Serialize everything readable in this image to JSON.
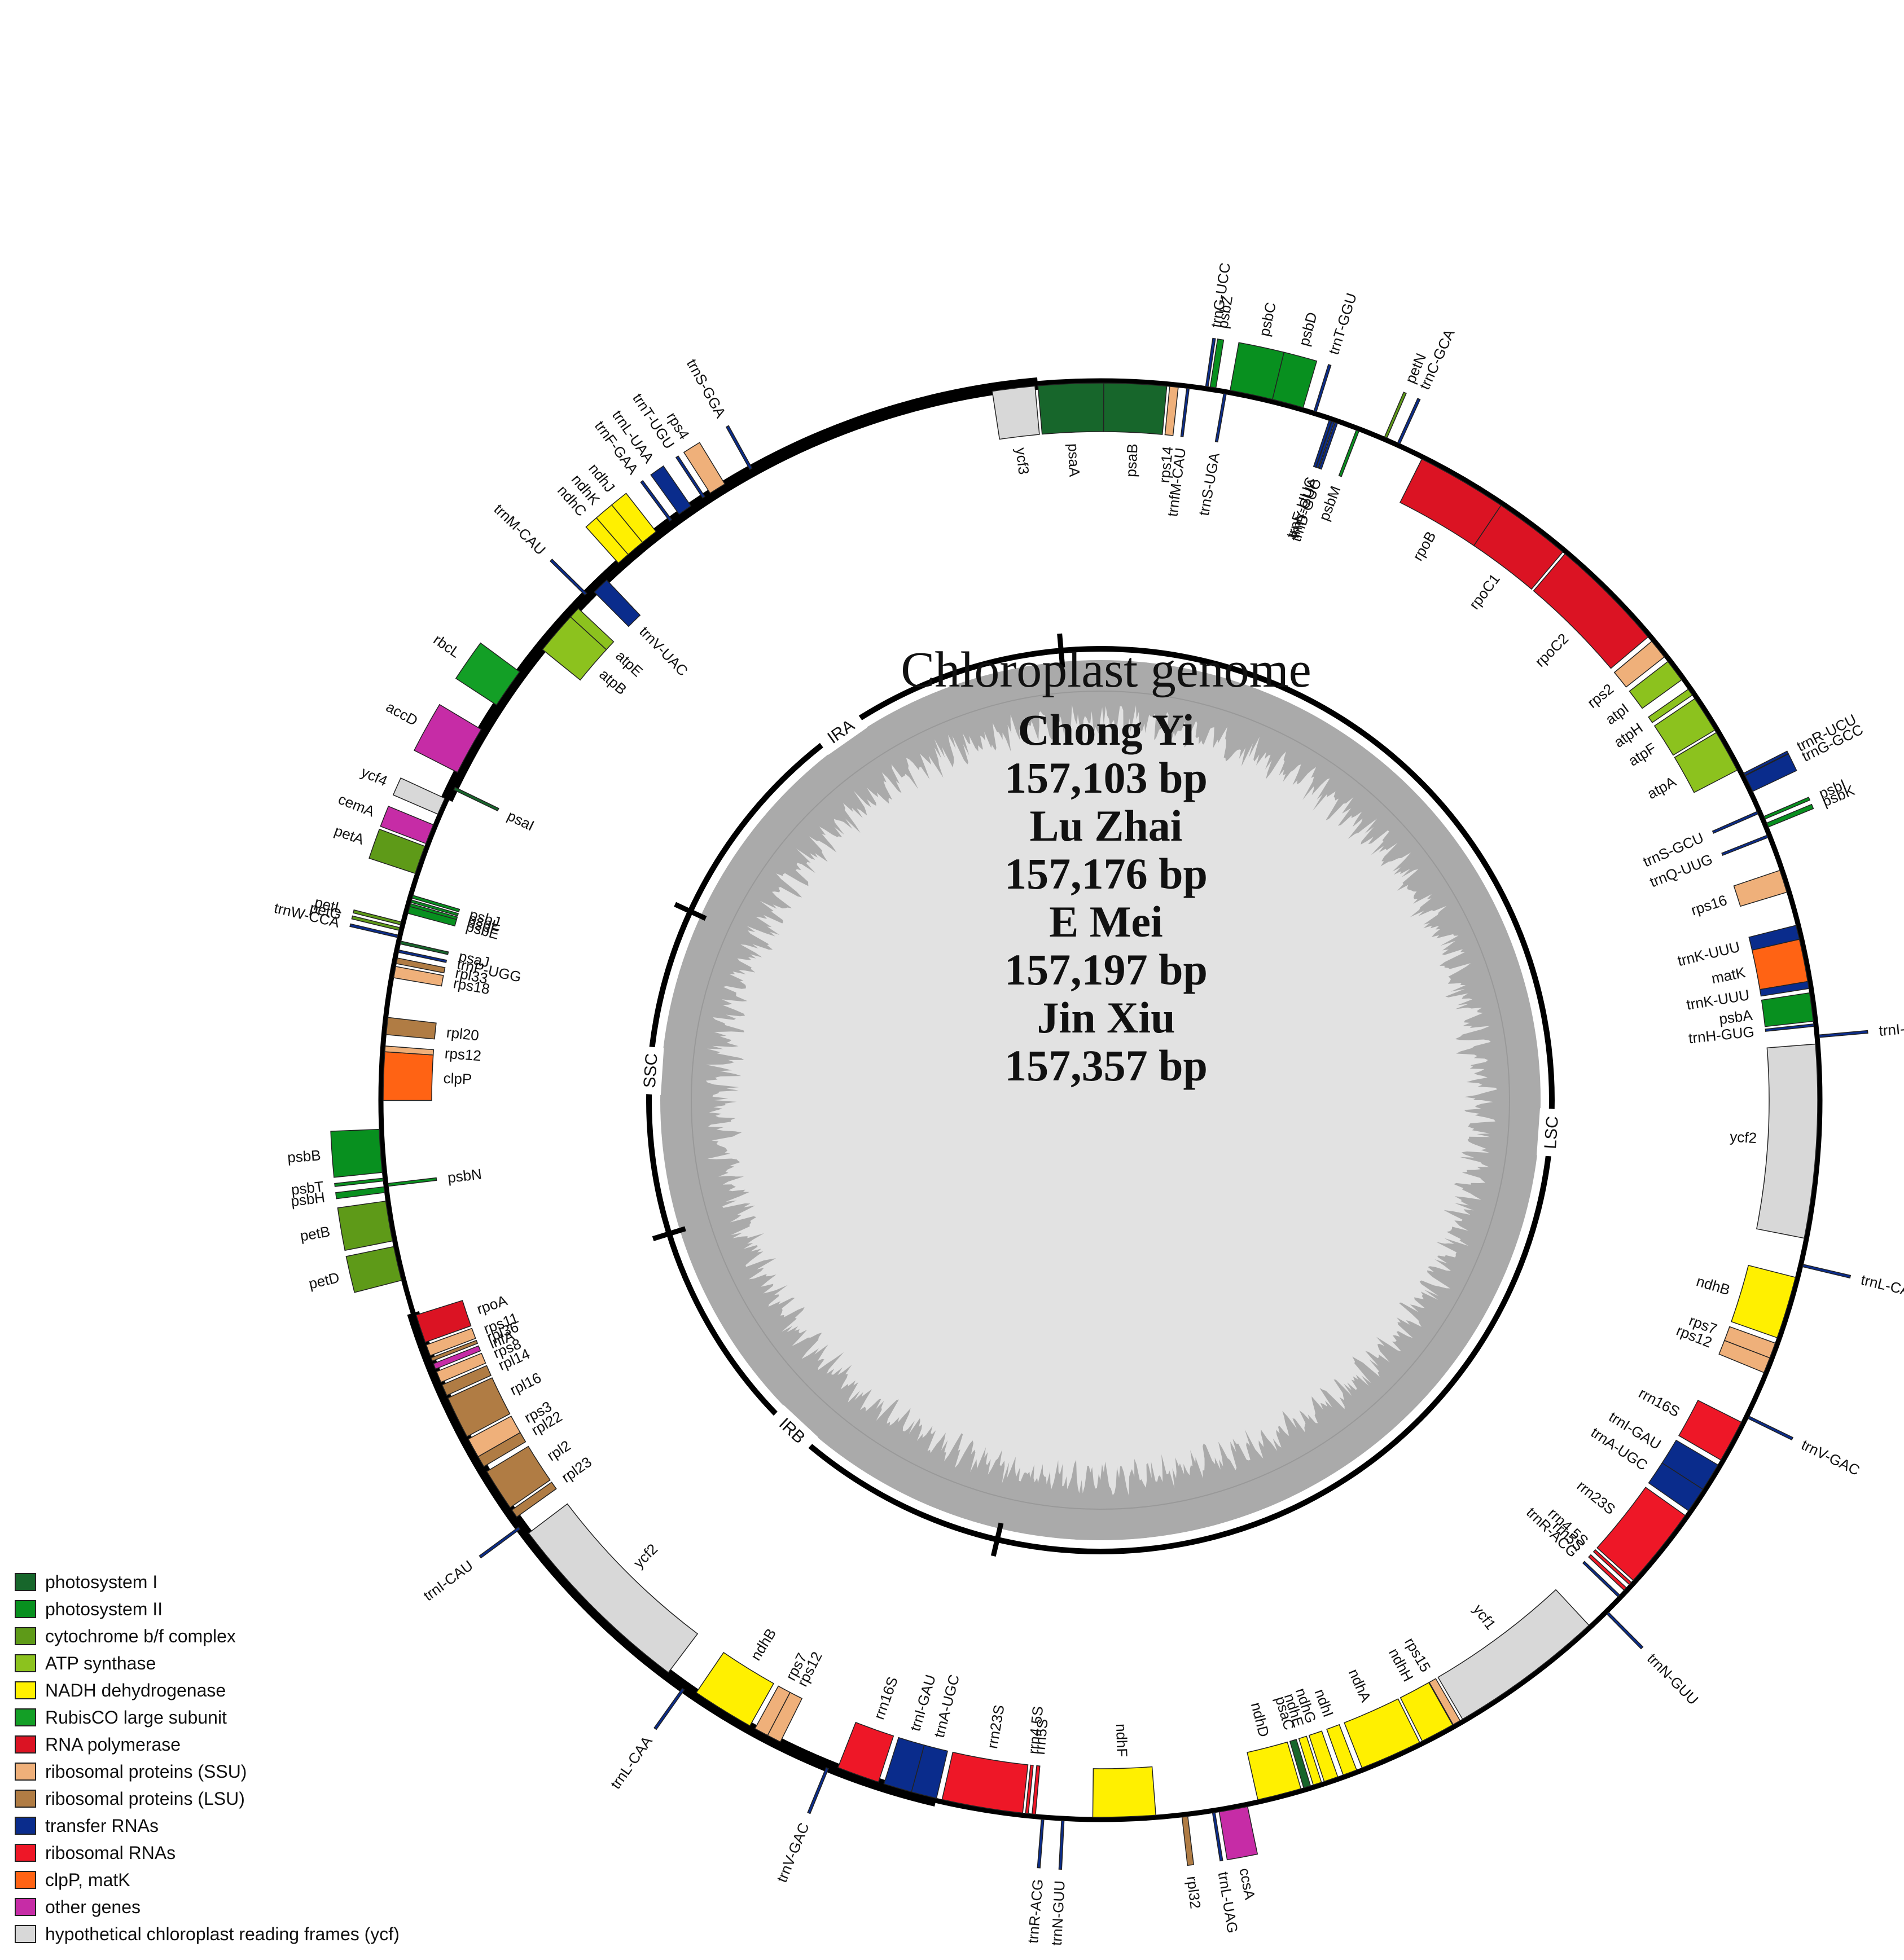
{
  "center": {
    "title": "Chloroplast genome",
    "lines": [
      "Chong Yi",
      "157,103 bp",
      "Lu Zhai",
      "157,176 bp",
      "E Mei",
      "157,197 bp",
      "Jin Xiu",
      "157,357 bp"
    ]
  },
  "regions": [
    {
      "label": "LSC",
      "start": 0,
      "end": 86500
    },
    {
      "label": "IRB",
      "start": 86500,
      "end": 112500
    },
    {
      "label": "SSC",
      "start": 112500,
      "end": 130800
    },
    {
      "label": "IRA",
      "start": 130800,
      "end": 157103
    }
  ],
  "colors": {
    "photosystem I": "#17662b",
    "photosystem II": "#08901f",
    "cytochrome b/f complex": "#5e9a18",
    "ATP synthase": "#8cc21e",
    "NADH dehydrogenase": "#fff000",
    "RubisCO large subunit": "#139f26",
    "RNA polymerase": "#db1323",
    "ribosomal proteins (SSU)": "#efb07a",
    "ribosomal proteins (LSU)": "#b07c44",
    "transfer RNAs": "#0a2c8c",
    "ribosomal RNAs": "#ee1727",
    "clpP, matK": "#ff6314",
    "other genes": "#c62ca6",
    "hypothetical chloroplast reading frames (ycf)": "#d8d8d8"
  },
  "legend": [
    {
      "label": "photosystem I",
      "color": "#17662b"
    },
    {
      "label": "photosystem II",
      "color": "#08901f"
    },
    {
      "label": "cytochrome b/f complex",
      "color": "#5e9a18"
    },
    {
      "label": "ATP synthase",
      "color": "#8cc21e"
    },
    {
      "label": "NADH dehydrogenase",
      "color": "#fff000"
    },
    {
      "label": "RubisCO large subunit",
      "color": "#139f26"
    },
    {
      "label": "RNA polymerase",
      "color": "#db1323"
    },
    {
      "label": "ribosomal proteins (SSU)",
      "color": "#efb07a"
    },
    {
      "label": "ribosomal proteins (LSU)",
      "color": "#b07c44"
    },
    {
      "label": "transfer RNAs",
      "color": "#0a2c8c"
    },
    {
      "label": "ribosomal RNAs",
      "color": "#ee1727"
    },
    {
      "label": "clpP, matK",
      "color": "#ff6314"
    },
    {
      "label": "other genes",
      "color": "#c62ca6"
    },
    {
      "label": "hypothetical chloroplast reading frames (ycf)",
      "color": "#d8d8d8"
    }
  ],
  "genes": [
    {
      "name": "ycf3",
      "cat": "hypothetical chloroplast reading frames (ycf)",
      "start": 155500,
      "end": 157000,
      "strand": "+"
    },
    {
      "name": "psaA",
      "cat": "photosystem I",
      "start": 0,
      "end": 2300,
      "strand": "+"
    },
    {
      "name": "psaB",
      "cat": "photosystem I",
      "start": 2300,
      "end": 4500,
      "strand": "+"
    },
    {
      "name": "rps14",
      "cat": "ribosomal proteins (SSU)",
      "start": 4600,
      "end": 4900,
      "strand": "+"
    },
    {
      "name": "trnfM-CAU",
      "cat": "transfer RNAs",
      "start": 5200,
      "end": 5280,
      "strand": "+"
    },
    {
      "name": "trnS-UGA",
      "cat": "transfer RNAs",
      "start": 6500,
      "end": 6590,
      "strand": "+"
    },
    {
      "name": "trnG-UCC",
      "cat": "transfer RNAs",
      "start": 5850,
      "end": 5920,
      "strand": "-"
    },
    {
      "name": "psbZ",
      "cat": "photosystem II",
      "start": 6000,
      "end": 6200,
      "strand": "-"
    },
    {
      "name": "psbC",
      "cat": "photosystem II",
      "start": 6700,
      "end": 8200,
      "strand": "-"
    },
    {
      "name": "psbD",
      "cat": "photosystem II",
      "start": 8200,
      "end": 9300,
      "strand": "-"
    },
    {
      "name": "trnT-GGU",
      "cat": "transfer RNAs",
      "start": 9700,
      "end": 9775,
      "strand": "-"
    },
    {
      "name": "trnE-UUC",
      "cat": "transfer RNAs",
      "start": 10300,
      "end": 10375,
      "strand": "+"
    },
    {
      "name": "trnY-GUA",
      "cat": "transfer RNAs",
      "start": 10400,
      "end": 10480,
      "strand": "+"
    },
    {
      "name": "trnD-GUC",
      "cat": "transfer RNAs",
      "start": 10520,
      "end": 10600,
      "strand": "+"
    },
    {
      "name": "psbM",
      "cat": "photosystem II",
      "start": 11300,
      "end": 11400,
      "strand": "+"
    },
    {
      "name": "petN",
      "cat": "cytochrome b/f complex",
      "start": 12300,
      "end": 12390,
      "strand": "-"
    },
    {
      "name": "trnC-GCA",
      "cat": "transfer RNAs",
      "start": 12800,
      "end": 12880,
      "strand": "-"
    },
    {
      "name": "rpoB",
      "cat": "RNA polymerase",
      "start": 13800,
      "end": 17000,
      "strand": "+"
    },
    {
      "name": "rpoC1",
      "cat": "RNA polymerase",
      "start": 17000,
      "end": 19700,
      "strand": "+"
    },
    {
      "name": "rpoC2",
      "cat": "RNA polymerase",
      "start": 19800,
      "end": 23900,
      "strand": "+"
    },
    {
      "name": "rps2",
      "cat": "ribosomal proteins (SSU)",
      "start": 24100,
      "end": 24800,
      "strand": "+"
    },
    {
      "name": "atpI",
      "cat": "ATP synthase",
      "start": 25000,
      "end": 25800,
      "strand": "+"
    },
    {
      "name": "atpH",
      "cat": "ATP synthase",
      "start": 26200,
      "end": 26450,
      "strand": "+"
    },
    {
      "name": "atpF",
      "cat": "ATP synthase",
      "start": 26600,
      "end": 27900,
      "strand": "+"
    },
    {
      "name": "atpA",
      "cat": "ATP synthase",
      "start": 28000,
      "end": 29500,
      "strand": "+"
    },
    {
      "name": "trnR-UCU",
      "cat": "transfer RNAs",
      "start": 29700,
      "end": 29780,
      "strand": "-"
    },
    {
      "name": "trnG-GCC",
      "cat": "transfer RNAs",
      "start": 29800,
      "end": 30400,
      "strand": "-"
    },
    {
      "name": "trnS-GCU",
      "cat": "transfer RNAs",
      "start": 31100,
      "end": 31190,
      "strand": "+"
    },
    {
      "name": "psbI",
      "cat": "photosystem II",
      "start": 31350,
      "end": 31450,
      "strand": "-"
    },
    {
      "name": "psbK",
      "cat": "photosystem II",
      "start": 31600,
      "end": 31750,
      "strand": "-"
    },
    {
      "name": "trnQ-UUG",
      "cat": "transfer RNAs",
      "start": 32000,
      "end": 32080,
      "strand": "+"
    },
    {
      "name": "rps16",
      "cat": "ribosomal proteins (SSU)",
      "start": 33300,
      "end": 34100,
      "strand": "+"
    },
    {
      "name": "trnK-UUU",
      "cat": "transfer RNAs",
      "start": 35300,
      "end": 35800,
      "strand": "+"
    },
    {
      "name": "matK",
      "cat": "clpP, matK",
      "start": 35800,
      "end": 37300,
      "strand": "+"
    },
    {
      "name": "trnK-UUU",
      "cat": "transfer RNAs",
      "start": 37300,
      "end": 37550,
      "strand": "+"
    },
    {
      "name": "psbA",
      "cat": "photosystem II",
      "start": 37700,
      "end": 38700,
      "strand": "+"
    },
    {
      "name": "trnH-GUG",
      "cat": "transfer RNAs",
      "start": 38800,
      "end": 38875,
      "strand": "+"
    },
    {
      "name": "trnI-CAU",
      "cat": "transfer RNAs",
      "start": 39200,
      "end": 39275,
      "strand": "-"
    },
    {
      "name": "ycf2",
      "cat": "hypothetical chloroplast reading frames (ycf)",
      "start": 39500,
      "end": 46300,
      "strand": "+"
    },
    {
      "name": "trnL-CAA",
      "cat": "transfer RNAs",
      "start": 47200,
      "end": 47280,
      "strand": "-"
    },
    {
      "name": "ndhB",
      "cat": "NADH dehydrogenase",
      "start": 47700,
      "end": 49900,
      "strand": "+"
    },
    {
      "name": "rps7",
      "cat": "ribosomal proteins (SSU)",
      "start": 50100,
      "end": 50650,
      "strand": "+"
    },
    {
      "name": "rps12",
      "cat": "ribosomal proteins (SSU)",
      "start": 50650,
      "end": 51200,
      "strand": "+"
    },
    {
      "name": "trnV-GAC",
      "cat": "transfer RNAs",
      "start": 52800,
      "end": 52875,
      "strand": "-"
    },
    {
      "name": "rrn16S",
      "cat": "ribosomal RNAs",
      "start": 53100,
      "end": 54600,
      "strand": "+"
    },
    {
      "name": "trnI-GAU",
      "cat": "transfer RNAs",
      "start": 54800,
      "end": 55800,
      "strand": "+"
    },
    {
      "name": "trnA-UGC",
      "cat": "transfer RNAs",
      "start": 55800,
      "end": 56700,
      "strand": "+"
    },
    {
      "name": "rrn23S",
      "cat": "ribosomal RNAs",
      "start": 56900,
      "end": 59800,
      "strand": "+"
    },
    {
      "name": "rrn4.5S",
      "cat": "ribosomal RNAs",
      "start": 59900,
      "end": 60000,
      "strand": "+"
    },
    {
      "name": "rrn5S",
      "cat": "ribosomal RNAs",
      "start": 60150,
      "end": 60270,
      "strand": "+"
    },
    {
      "name": "trnR-ACG",
      "cat": "transfer RNAs",
      "start": 60500,
      "end": 60575,
      "strand": "+"
    },
    {
      "name": "trnN-GUU",
      "cat": "transfer RNAs",
      "start": 61200,
      "end": 61275,
      "strand": "-"
    },
    {
      "name": "ycf1",
      "cat": "hypothetical chloroplast reading frames (ycf)",
      "start": 62000,
      "end": 67500,
      "strand": "+"
    },
    {
      "name": "rps15",
      "cat": "ribosomal proteins (SSU)",
      "start": 67600,
      "end": 67880,
      "strand": "+"
    },
    {
      "name": "ndhH",
      "cat": "NADH dehydrogenase",
      "start": 67900,
      "end": 69100,
      "strand": "+"
    },
    {
      "name": "ndhA",
      "cat": "NADH dehydrogenase",
      "start": 69200,
      "end": 71400,
      "strand": "+"
    },
    {
      "name": "ndhI",
      "cat": "NADH dehydrogenase",
      "start": 71600,
      "end": 72100,
      "strand": "+"
    },
    {
      "name": "ndhG",
      "cat": "NADH dehydrogenase",
      "start": 72300,
      "end": 72800,
      "strand": "+"
    },
    {
      "name": "ndhE",
      "cat": "NADH dehydrogenase",
      "start": 72900,
      "end": 73200,
      "strand": "+"
    },
    {
      "name": "psaC",
      "cat": "photosystem I",
      "start": 73300,
      "end": 73550,
      "strand": "+"
    },
    {
      "name": "ndhD",
      "cat": "NADH dehydrogenase",
      "start": 73650,
      "end": 75200,
      "strand": "+"
    },
    {
      "name": "ccsA",
      "cat": "other genes",
      "start": 75600,
      "end": 76600,
      "strand": "-"
    },
    {
      "name": "trnL-UAG",
      "cat": "transfer RNAs",
      "start": 76750,
      "end": 76830,
      "strand": "-"
    },
    {
      "name": "rpl32",
      "cat": "ribosomal proteins (LSU)",
      "start": 77700,
      "end": 77900,
      "strand": "-"
    },
    {
      "name": "ndhF",
      "cat": "NADH dehydrogenase",
      "start": 78800,
      "end": 81000,
      "strand": "+"
    },
    {
      "name": "trnN-GUU",
      "cat": "transfer RNAs",
      "start": 82000,
      "end": 82075,
      "strand": "-"
    },
    {
      "name": "trnR-ACG",
      "cat": "transfer RNAs",
      "start": 82700,
      "end": 82775,
      "strand": "-"
    },
    {
      "name": "rrn5S",
      "cat": "ribosomal RNAs",
      "start": 83000,
      "end": 83120,
      "strand": "+"
    },
    {
      "name": "rrn4.5S",
      "cat": "ribosomal RNAs",
      "start": 83250,
      "end": 83350,
      "strand": "+"
    },
    {
      "name": "rrn23S",
      "cat": "ribosomal RNAs",
      "start": 83450,
      "end": 86300,
      "strand": "+"
    },
    {
      "name": "trnA-UGC",
      "cat": "transfer RNAs",
      "start": 86500,
      "end": 87400,
      "strand": "+"
    },
    {
      "name": "trnI-GAU",
      "cat": "transfer RNAs",
      "start": 87400,
      "end": 88400,
      "strand": "+"
    },
    {
      "name": "rrn16S",
      "cat": "ribosomal RNAs",
      "start": 88600,
      "end": 90100,
      "strand": "+"
    },
    {
      "name": "trnV-GAC",
      "cat": "transfer RNAs",
      "start": 90400,
      "end": 90475,
      "strand": "-"
    },
    {
      "name": "rps12",
      "cat": "ribosomal proteins (SSU)",
      "start": 92300,
      "end": 92800,
      "strand": "+"
    },
    {
      "name": "rps7",
      "cat": "ribosomal proteins (SSU)",
      "start": 92800,
      "end": 93300,
      "strand": "+"
    },
    {
      "name": "ndhB",
      "cat": "NADH dehydrogenase",
      "start": 93500,
      "end": 95700,
      "strand": "+"
    },
    {
      "name": "trnL-CAA",
      "cat": "transfer RNAs",
      "start": 96100,
      "end": 96180,
      "strand": "-"
    },
    {
      "name": "ycf2",
      "cat": "hypothetical chloroplast reading frames (ycf)",
      "start": 96900,
      "end": 103800,
      "strand": "+"
    },
    {
      "name": "trnI-CAU",
      "cat": "transfer RNAs",
      "start": 104100,
      "end": 104175,
      "strand": "-"
    },
    {
      "name": "rpl23",
      "cat": "ribosomal proteins (LSU)",
      "start": 104500,
      "end": 104800,
      "strand": "+"
    },
    {
      "name": "rpl2",
      "cat": "ribosomal proteins (LSU)",
      "start": 104900,
      "end": 106400,
      "strand": "+"
    },
    {
      "name": "rpl22",
      "cat": "ribosomal proteins (LSU)",
      "start": 106600,
      "end": 107000,
      "strand": "+"
    },
    {
      "name": "rps3",
      "cat": "ribosomal proteins (SSU)",
      "start": 107000,
      "end": 107700,
      "strand": "+"
    },
    {
      "name": "rpl16",
      "cat": "ribosomal proteins (LSU)",
      "start": 107800,
      "end": 109300,
      "strand": "+"
    },
    {
      "name": "rpl14",
      "cat": "ribosomal proteins (LSU)",
      "start": 109400,
      "end": 109800,
      "strand": "+"
    },
    {
      "name": "rps8",
      "cat": "ribosomal proteins (SSU)",
      "start": 109900,
      "end": 110300,
      "strand": "+"
    },
    {
      "name": "infA",
      "cat": "other genes",
      "start": 110400,
      "end": 110600,
      "strand": "+"
    },
    {
      "name": "rpl36",
      "cat": "ribosomal proteins (LSU)",
      "start": 110700,
      "end": 110820,
      "strand": "+"
    },
    {
      "name": "rps11",
      "cat": "ribosomal proteins (SSU)",
      "start": 110900,
      "end": 111300,
      "strand": "+"
    },
    {
      "name": "rpoA",
      "cat": "RNA polymerase",
      "start": 111400,
      "end": 112400,
      "strand": "+"
    },
    {
      "name": "petD",
      "cat": "cytochrome b/f complex",
      "start": 113700,
      "end": 114900,
      "strand": "-"
    },
    {
      "name": "petB",
      "cat": "cytochrome b/f complex",
      "start": 115100,
      "end": 116500,
      "strand": "-"
    },
    {
      "name": "psbH",
      "cat": "photosystem II",
      "start": 116800,
      "end": 117000,
      "strand": "-"
    },
    {
      "name": "psbN",
      "cat": "photosystem II",
      "start": 117000,
      "end": 117100,
      "strand": "+"
    },
    {
      "name": "psbT",
      "cat": "photosystem II",
      "start": 117200,
      "end": 117300,
      "strand": "-"
    },
    {
      "name": "psbB",
      "cat": "photosystem II",
      "start": 117500,
      "end": 119000,
      "strand": "-"
    },
    {
      "name": "clpP",
      "cat": "clpP, matK",
      "start": 120000,
      "end": 121700,
      "strand": "+"
    },
    {
      "name": "rps12",
      "cat": "ribosomal proteins (SSU)",
      "start": 121700,
      "end": 121900,
      "strand": "+"
    },
    {
      "name": "rpl20",
      "cat": "ribosomal proteins (LSU)",
      "start": 122300,
      "end": 122900,
      "strand": "+"
    },
    {
      "name": "rps18",
      "cat": "ribosomal proteins (SSU)",
      "start": 124300,
      "end": 124700,
      "strand": "+"
    },
    {
      "name": "rpl33",
      "cat": "ribosomal proteins (LSU)",
      "start": 124800,
      "end": 125000,
      "strand": "+"
    },
    {
      "name": "trnP-UGG",
      "cat": "transfer RNAs",
      "start": 125200,
      "end": 125280,
      "strand": "+"
    },
    {
      "name": "psaJ",
      "cat": "photosystem I",
      "start": 125500,
      "end": 125600,
      "strand": "+"
    },
    {
      "name": "trnW-CCA",
      "cat": "transfer RNAs",
      "start": 125700,
      "end": 125780,
      "strand": "-"
    },
    {
      "name": "petG",
      "cat": "cytochrome b/f complex",
      "start": 125950,
      "end": 126050,
      "strand": "-"
    },
    {
      "name": "petL",
      "cat": "cytochrome b/f complex",
      "start": 126150,
      "end": 126250,
      "strand": "-"
    },
    {
      "name": "psbE",
      "cat": "photosystem II",
      "start": 126600,
      "end": 126850,
      "strand": "+"
    },
    {
      "name": "psbF",
      "cat": "photosystem II",
      "start": 126850,
      "end": 126950,
      "strand": "+"
    },
    {
      "name": "psbL",
      "cat": "photosystem II",
      "start": 127000,
      "end": 127080,
      "strand": "+"
    },
    {
      "name": "psbJ",
      "cat": "photosystem II",
      "start": 127150,
      "end": 127250,
      "strand": "+"
    },
    {
      "name": "petA",
      "cat": "cytochrome b/f complex",
      "start": 128000,
      "end": 129000,
      "strand": "-"
    },
    {
      "name": "cemA",
      "cat": "other genes",
      "start": 129100,
      "end": 129800,
      "strand": "-"
    },
    {
      "name": "ycf4",
      "cat": "hypothetical chloroplast reading frames (ycf)",
      "start": 130200,
      "end": 130800,
      "strand": "-"
    },
    {
      "name": "psaI",
      "cat": "photosystem I",
      "start": 131200,
      "end": 131300,
      "strand": "+"
    },
    {
      "name": "accD",
      "cat": "other genes",
      "start": 131800,
      "end": 133500,
      "strand": "-"
    },
    {
      "name": "rbcL",
      "cat": "RubisCO large subunit",
      "start": 134500,
      "end": 135900,
      "strand": "-"
    },
    {
      "name": "atpB",
      "cat": "ATP synthase",
      "start": 137000,
      "end": 138500,
      "strand": "+"
    },
    {
      "name": "atpE",
      "cat": "ATP synthase",
      "start": 138500,
      "end": 138900,
      "strand": "+"
    },
    {
      "name": "trnM-CAU",
      "cat": "transfer RNAs",
      "start": 139400,
      "end": 139475,
      "strand": "-"
    },
    {
      "name": "trnV-UAC",
      "cat": "transfer RNAs",
      "start": 139700,
      "end": 140300,
      "strand": "+"
    },
    {
      "name": "ndhC",
      "cat": "NADH dehydrogenase",
      "start": 141000,
      "end": 141450,
      "strand": "-"
    },
    {
      "name": "ndhK",
      "cat": "NADH dehydrogenase",
      "start": 141450,
      "end": 142100,
      "strand": "-"
    },
    {
      "name": "ndhJ",
      "cat": "NADH dehydrogenase",
      "start": 142100,
      "end": 142700,
      "strand": "-"
    },
    {
      "name": "trnF-GAA",
      "cat": "transfer RNAs",
      "start": 143300,
      "end": 143375,
      "strand": "-"
    },
    {
      "name": "trnL-UAA",
      "cat": "transfer RNAs",
      "start": 143700,
      "end": 144200,
      "strand": "-"
    },
    {
      "name": "trnT-UGU",
      "cat": "transfer RNAs",
      "start": 144700,
      "end": 144775,
      "strand": "-"
    },
    {
      "name": "rps4",
      "cat": "ribosomal proteins (SSU)",
      "start": 145000,
      "end": 145600,
      "strand": "-"
    },
    {
      "name": "trnS-GGA",
      "cat": "transfer RNAs",
      "start": 146600,
      "end": 146690,
      "strand": "-"
    }
  ]
}
